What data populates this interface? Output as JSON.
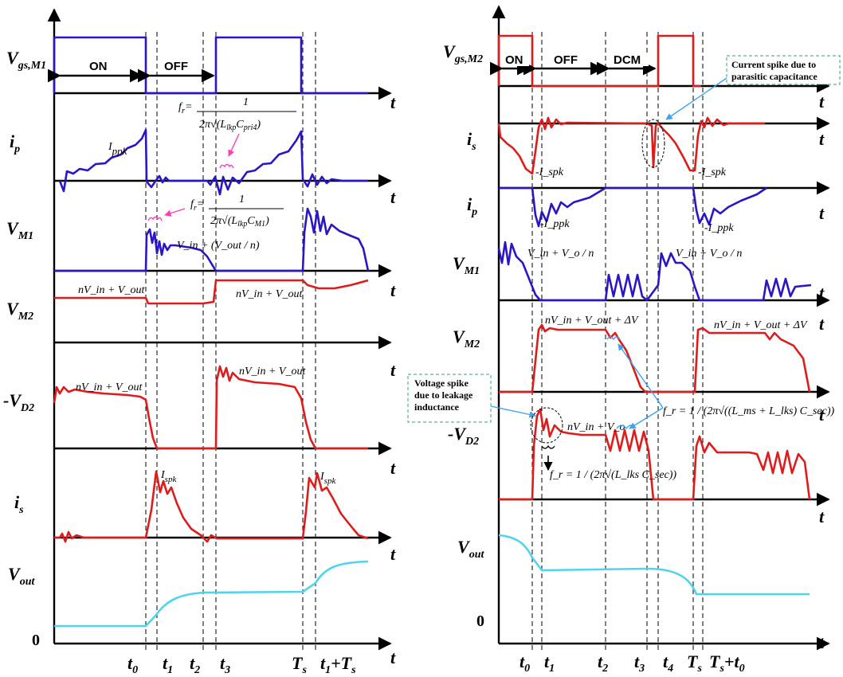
{
  "left_panel": {
    "rows": [
      {
        "label": "V",
        "sub": "gs,M1"
      },
      {
        "label": "i",
        "sub": "p"
      },
      {
        "label": "V",
        "sub": "M1"
      },
      {
        "label": "V",
        "sub": "M2"
      },
      {
        "label": "-V",
        "sub": "D2"
      },
      {
        "label": "i",
        "sub": "s"
      },
      {
        "label": "V",
        "sub": "out"
      }
    ],
    "zero": "0",
    "axis_t": "t",
    "phases": [
      "ON",
      "OFF"
    ],
    "annotations": {
      "ippk": {
        "main": "I",
        "sub": "ppk"
      },
      "fr1": {
        "lhs": "f",
        "lhs_sub": "r",
        "eq": "=",
        "num": "1",
        "den": "2π√(L",
        "den_sub1": "lkp",
        "den_c": "C",
        "den_sub2": "pri4",
        "close": ")"
      },
      "fr2": {
        "lhs": "f",
        "lhs_sub": "r",
        "eq": "=",
        "num": "1",
        "den": "2π√(L",
        "den_sub1": "lkp",
        "den_c": "C",
        "den_sub2": "M1",
        "close": ")"
      },
      "vm1_level": "V_in + (V_out / n)",
      "vm2_level_a": "nV_in + V_out",
      "vm2_level_b": "nV_in + V_out",
      "vd2_level_a": "nV_in + V_out",
      "vd2_level_b": "nV_in + V_out",
      "ispk_a": {
        "main": "I",
        "sub": "spk"
      },
      "ispk_b": {
        "main": "I",
        "sub": "spk"
      }
    },
    "time_labels": [
      {
        "main": "t",
        "sub": "0"
      },
      {
        "main": "t",
        "sub": "1"
      },
      {
        "main": "t",
        "sub": "2"
      },
      {
        "main": "t",
        "sub": "3"
      },
      {
        "main": "T",
        "sub": "s"
      },
      {
        "main": "t",
        "sub": "1",
        "suffix": "+T",
        "suffix_sub": "s"
      }
    ]
  },
  "right_panel": {
    "rows": [
      {
        "label": "V",
        "sub": "gs,M2"
      },
      {
        "label": "i",
        "sub": "s"
      },
      {
        "label": "i",
        "sub": "p"
      },
      {
        "label": "V",
        "sub": "M1"
      },
      {
        "label": "V",
        "sub": "M2"
      },
      {
        "label": "-V",
        "sub": "D2"
      },
      {
        "label": "V",
        "sub": "out"
      }
    ],
    "zero": "0",
    "axis_t": "t",
    "phases": [
      "ON",
      "OFF",
      "DCM"
    ],
    "notes": {
      "current_spike": [
        "Current spike due to",
        "parasitic capacitance"
      ],
      "voltage_spike": [
        "Voltage spike",
        "due to leakage",
        "inductance"
      ]
    },
    "annotations": {
      "ispk_neg_a": "-I_spk",
      "ispk_neg_b": "-I_spk",
      "ippk_neg_a": "-I_ppk",
      "ippk_neg_b": "-I_ppk",
      "vm1_level_a": "V_in + V_o / n",
      "vm1_level_b": "V_in + V_o / n",
      "vm2_level_a": "nV_in + V_out + ΔV",
      "vm2_level_b": "nV_in + V_out + ΔV",
      "vd2_level": "nV_in + V_o",
      "fr_sec": "f_r = 1 / (2π√((L_ms + L_lks) C_sec))",
      "fr_lks": "f_r = 1 / (2π√(L_lks C_sec))"
    },
    "time_labels": [
      {
        "main": "t",
        "sub": "0"
      },
      {
        "main": "t",
        "sub": "1"
      },
      {
        "main": "t",
        "sub": "2"
      },
      {
        "main": "t",
        "sub": "3"
      },
      {
        "main": "t",
        "sub": "4"
      },
      {
        "main": "T",
        "sub": "s"
      },
      {
        "main": "T",
        "sub": "s",
        "suffix": "+t",
        "suffix_sub": "0"
      }
    ]
  },
  "colors": {
    "mosfet1": "#2a16c6",
    "secondary": "#e01b1b",
    "output": "#4fd3ef",
    "annotation_arrow": "#3da3ee",
    "resonance_bracket": "#ff3fb0",
    "note_border": "#3aa16a"
  }
}
